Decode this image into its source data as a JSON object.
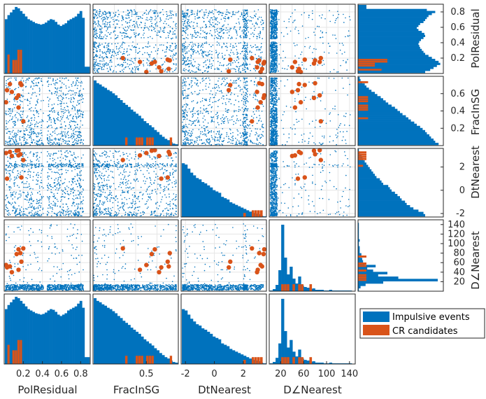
{
  "chart_data": {
    "type": "scatter-matrix",
    "variables": [
      {
        "name": "PolResidual",
        "range": [
          0,
          0.9
        ],
        "ticks": [
          0.2,
          0.4,
          0.6,
          0.8
        ],
        "tick_labels": [
          "0.2",
          "0.4",
          "0.6",
          "0.8"
        ]
      },
      {
        "name": "FracInSG",
        "range": [
          0,
          0.8
        ],
        "ticks": [
          0.2,
          0.4,
          0.6
        ],
        "tick_labels": [
          "0.2",
          "0.4",
          "0.6"
        ],
        "bottom_ticks": [
          0.5
        ],
        "bottom_tick_labels": [
          "0.5"
        ]
      },
      {
        "name": "DtNearest",
        "range": [
          -2.3,
          3.6
        ],
        "ticks": [
          -2,
          0,
          2
        ],
        "tick_labels": [
          "-2",
          "0",
          "2"
        ]
      },
      {
        "name": "D∠Nearest",
        "range": [
          0,
          150
        ],
        "ticks": [
          20,
          40,
          60,
          80,
          100,
          120,
          140
        ],
        "tick_labels": [
          "20",
          "40",
          "60",
          "80",
          "100",
          "120",
          "140"
        ],
        "bottom_ticks": [
          20,
          60,
          100,
          140
        ],
        "bottom_tick_labels": [
          "20",
          "60",
          "100",
          "140"
        ]
      }
    ],
    "series": [
      {
        "name": "Impulsive events",
        "color": "#0072BD"
      },
      {
        "name": "CR candidates",
        "color": "#D95319"
      }
    ],
    "histograms": {
      "PolResidual": {
        "impulsive": [
          0.8,
          0.86,
          0.9,
          0.94,
          0.98,
          0.96,
          0.92,
          0.88,
          0.84,
          0.8,
          0.78,
          0.76,
          0.74,
          0.73,
          0.72,
          0.73,
          0.75,
          0.78,
          0.8,
          0.79,
          0.76,
          0.72,
          0.7,
          0.72,
          0.74,
          0.78,
          0.8,
          0.82,
          0.84,
          0.88,
          0.92,
          0.82,
          0.1,
          0.1
        ],
        "cr": [
          0,
          0.28,
          0,
          0.2,
          0.2,
          0.35,
          0.35,
          0,
          0,
          0,
          0,
          0,
          0,
          0,
          0,
          0,
          0,
          0,
          0,
          0,
          0,
          0,
          0,
          0,
          0,
          0,
          0,
          0,
          0,
          0,
          0,
          0,
          0,
          0
        ]
      },
      "FracInSG": {
        "impulsive": [
          0.96,
          0.92,
          0.9,
          0.87,
          0.85,
          0.82,
          0.8,
          0.77,
          0.74,
          0.7,
          0.67,
          0.63,
          0.6,
          0.57,
          0.53,
          0.5,
          0.47,
          0.44,
          0.4,
          0.36,
          0.33,
          0.3,
          0.27,
          0.23,
          0.2,
          0.16,
          0.13,
          0.1,
          0.08,
          0.05,
          0.03,
          0.02
        ],
        "cr": [
          0,
          0,
          0,
          0,
          0,
          0,
          0,
          0,
          0,
          0,
          0,
          0,
          0.12,
          0,
          0,
          0,
          0.12,
          0.12,
          0.12,
          0,
          0.12,
          0.12,
          0.12,
          0,
          0,
          0,
          0,
          0,
          0,
          0.12,
          0,
          0
        ]
      },
      "DtNearest": {
        "impulsive": [
          0.8,
          0.78,
          0.72,
          0.66,
          0.62,
          0.58,
          0.56,
          0.52,
          0.5,
          0.47,
          0.44,
          0.4,
          0.38,
          0.36,
          0.3,
          0.28,
          0.26,
          0.22,
          0.2,
          0.18,
          0.16,
          0.14,
          0.12,
          0.1,
          0.08,
          0.06,
          0.05,
          0.04,
          0.02,
          0.01
        ],
        "cr": [
          0,
          0,
          0,
          0,
          0,
          0,
          0,
          0,
          0,
          0,
          0,
          0,
          0,
          0,
          0,
          0,
          0,
          0,
          0,
          0,
          0,
          0,
          0.06,
          0,
          0,
          0.1,
          0.1,
          0.1,
          0.1,
          0
        ]
      },
      "DangleNearest": {
        "impulsive": [
          0.01,
          0.03,
          0.09,
          0.3,
          0.95,
          0.48,
          0.24,
          0.35,
          0.18,
          0.11,
          0.21,
          0.08,
          0.06,
          0.05,
          0.03,
          0.04,
          0.02,
          0.02,
          0.02,
          0.01,
          0.01,
          0.02,
          0.01,
          0.01,
          0.01,
          0.01,
          0.01,
          0.01,
          0.01,
          0.0
        ],
        "cr": [
          0,
          0,
          0,
          0,
          0.1,
          0.1,
          0.1,
          0,
          0.1,
          0,
          0.1,
          0.1,
          0,
          0,
          0.1,
          0,
          0,
          0,
          0,
          0,
          0,
          0,
          0,
          0,
          0,
          0,
          0,
          0,
          0,
          0
        ]
      }
    },
    "cr_points": [
      {
        "PolResidual": 0.15,
        "FracInSG": 0.58,
        "DtNearest": 3.45,
        "DangleNearest": 88
      },
      {
        "PolResidual": 0.17,
        "FracInSG": 0.72,
        "DtNearest": 3.1,
        "DangleNearest": 80
      },
      {
        "PolResidual": 0.18,
        "FracInSG": 0.7,
        "DtNearest": 1.1,
        "DangleNearest": 62
      },
      {
        "PolResidual": 0.06,
        "FracInSG": 0.71,
        "DtNearest": 3.3,
        "DangleNearest": 52
      },
      {
        "PolResidual": 0.08,
        "FracInSG": 0.62,
        "DtNearest": 2.95,
        "DangleNearest": 40
      },
      {
        "PolResidual": 0.2,
        "FracInSG": 0.28,
        "DtNearest": 2.6,
        "DangleNearest": 90
      },
      {
        "PolResidual": 0.15,
        "FracInSG": 0.44,
        "DtNearest": 3.0,
        "DangleNearest": 45
      },
      {
        "PolResidual": 0.02,
        "FracInSG": 0.5,
        "DtNearest": 3.2,
        "DangleNearest": 55
      },
      {
        "PolResidual": 0.13,
        "FracInSG": 0.55,
        "DtNearest": 3.4,
        "DangleNearest": 78
      },
      {
        "PolResidual": 0.03,
        "FracInSG": 0.64,
        "DtNearest": 1.0,
        "DangleNearest": 50
      }
    ],
    "legend": {
      "placement": "right",
      "entries": [
        "Impulsive events",
        "CR candidates"
      ]
    },
    "grid": true
  }
}
